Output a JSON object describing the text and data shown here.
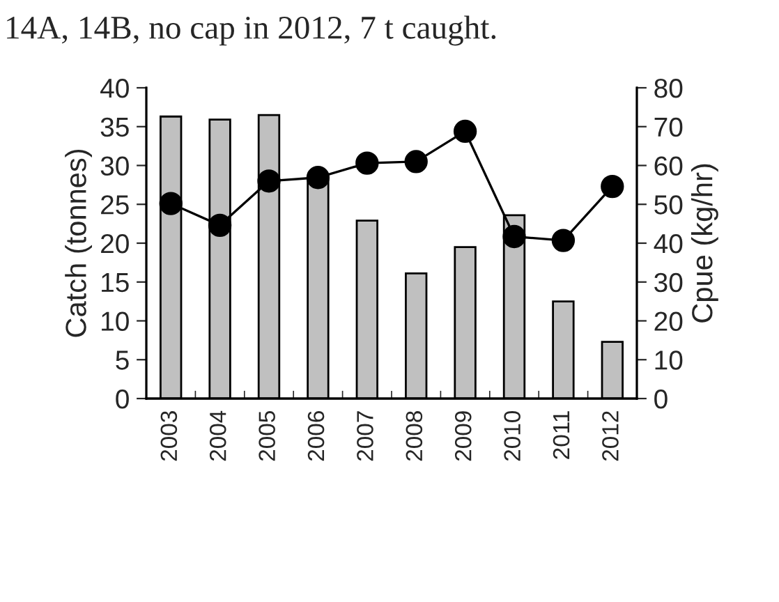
{
  "chart_data": {
    "type": "bar",
    "title": "14A, 14B, no cap in 2012, 7 t caught.",
    "ylabel": "Catch (tonnes)",
    "y2label": "Cpue (kg/hr)",
    "categories": [
      "2003",
      "2004",
      "2005",
      "2006",
      "2007",
      "2008",
      "2009",
      "2010",
      "2011",
      "2012"
    ],
    "series": [
      {
        "color": "#c0c0c0",
        "values": [
          36.3,
          35.9,
          36.5,
          28.5,
          22.9,
          16.1,
          19.5,
          23.6,
          12.5,
          7.3
        ]
      },
      {
        "type": "line",
        "axis": "y2",
        "color": "#000000",
        "marker": "circle",
        "values": [
          50.2,
          44.6,
          56.0,
          56.9,
          60.6,
          61.0,
          68.8,
          41.7,
          40.7,
          54.6
        ]
      }
    ],
    "ylim": [
      0,
      40
    ],
    "yticks": [
      0,
      5,
      10,
      15,
      20,
      25,
      30,
      35,
      40
    ],
    "y2lim": [
      0,
      80
    ],
    "y2ticks": [
      0,
      10,
      20,
      30,
      40,
      50,
      60,
      70,
      80
    ],
    "grid": false,
    "legend": false
  }
}
